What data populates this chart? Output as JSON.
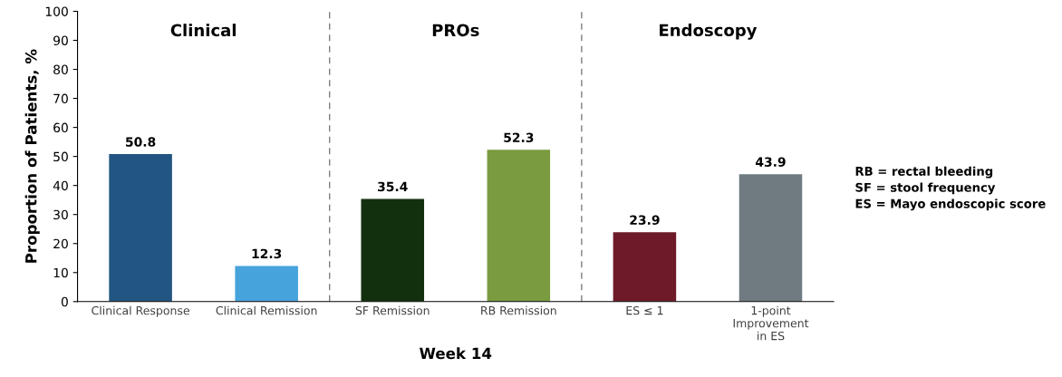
{
  "chart_data": {
    "type": "bar",
    "xlabel": "Week 14",
    "ylabel": "Proportion of Patients, %",
    "categories": [
      "Clinical Response",
      "Clinical Remission",
      "SF Remission",
      "RB Remission",
      "ES ≤ 1",
      "1-point\nImprovement\nin ES"
    ],
    "values": [
      50.8,
      12.3,
      35.4,
      52.3,
      23.9,
      43.9
    ],
    "colors": [
      "#225582",
      "#46a3dc",
      "#13300e",
      "#7a9b3f",
      "#6e1a28",
      "#6f7b80"
    ],
    "data_labels": true,
    "ylim": [
      0,
      100
    ],
    "yticks": [
      0,
      10,
      20,
      30,
      40,
      50,
      60,
      70,
      80,
      90,
      100
    ],
    "grid": false,
    "annotations": [
      "Clinical",
      "PROs",
      "Endoscopy",
      "RB = rectal bleeding\nSF = stool frequency\nES = Mayo endoscopic score"
    ]
  }
}
